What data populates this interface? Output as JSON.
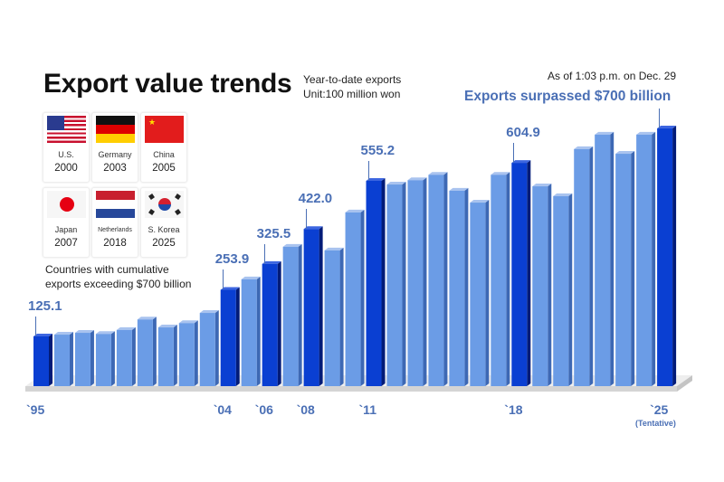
{
  "header": {
    "title": "Export value trends",
    "subtitle_line1": "Year-to-date exports",
    "subtitle_line2": "Unit:100 million won",
    "as_of": "As of 1:03 p.m. on Dec. 29",
    "headline": "Exports surpassed $700 billion"
  },
  "countries": [
    {
      "name": "U.S.",
      "year": "2000",
      "flag": "us-flag"
    },
    {
      "name": "Germany",
      "year": "2003",
      "flag": "germany-flag"
    },
    {
      "name": "China",
      "year": "2005",
      "flag": "china-flag"
    },
    {
      "name": "Japan",
      "year": "2007",
      "flag": "japan-flag"
    },
    {
      "name": "Netherlands",
      "year": "2018",
      "flag": "netherlands-flag"
    },
    {
      "name": "S. Korea",
      "year": "2025",
      "flag": "korea-flag"
    }
  ],
  "note_line1": "Countries with cumulative",
  "note_line2": "exports exceeding $700 billion",
  "chart_data": {
    "type": "bar",
    "title": "Export value trends",
    "unit": "Unit:100 million won",
    "x": [
      1995,
      1996,
      1997,
      1998,
      1999,
      2000,
      2001,
      2002,
      2003,
      2004,
      2005,
      2006,
      2007,
      2008,
      2009,
      2010,
      2011,
      2012,
      2013,
      2014,
      2015,
      2016,
      2017,
      2018,
      2019,
      2020,
      2021,
      2022,
      2023,
      2024,
      2025
    ],
    "values": [
      125.1,
      130,
      135,
      132,
      143,
      172,
      150,
      162,
      190,
      253.9,
      283,
      325.5,
      373,
      422.0,
      363,
      468,
      555.2,
      545,
      557,
      572,
      528,
      495,
      572,
      604.9,
      540,
      513,
      643,
      683,
      630,
      683,
      700
    ],
    "highlighted_years": [
      1995,
      2004,
      2006,
      2008,
      2011,
      2018,
      2025
    ],
    "data_labels": [
      {
        "year": 1995,
        "text": "125.1"
      },
      {
        "year": 2004,
        "text": "253.9"
      },
      {
        "year": 2006,
        "text": "325.5"
      },
      {
        "year": 2008,
        "text": "422.0"
      },
      {
        "year": 2011,
        "text": "555.2"
      },
      {
        "year": 2018,
        "text": "604.9"
      }
    ],
    "tick_labels": [
      {
        "year": 1995,
        "text": "`95"
      },
      {
        "year": 2004,
        "text": "`04"
      },
      {
        "year": 2006,
        "text": "`06"
      },
      {
        "year": 2008,
        "text": "`08"
      },
      {
        "year": 2011,
        "text": "`11"
      },
      {
        "year": 2018,
        "text": "`18"
      },
      {
        "year": 2025,
        "text": "`25"
      }
    ],
    "tentative_note": "(Tentative)",
    "colors": {
      "highlight": "#0a3fd2",
      "normal": "#6b9ce6",
      "label": "#4a6fb5"
    },
    "grid": false
  }
}
